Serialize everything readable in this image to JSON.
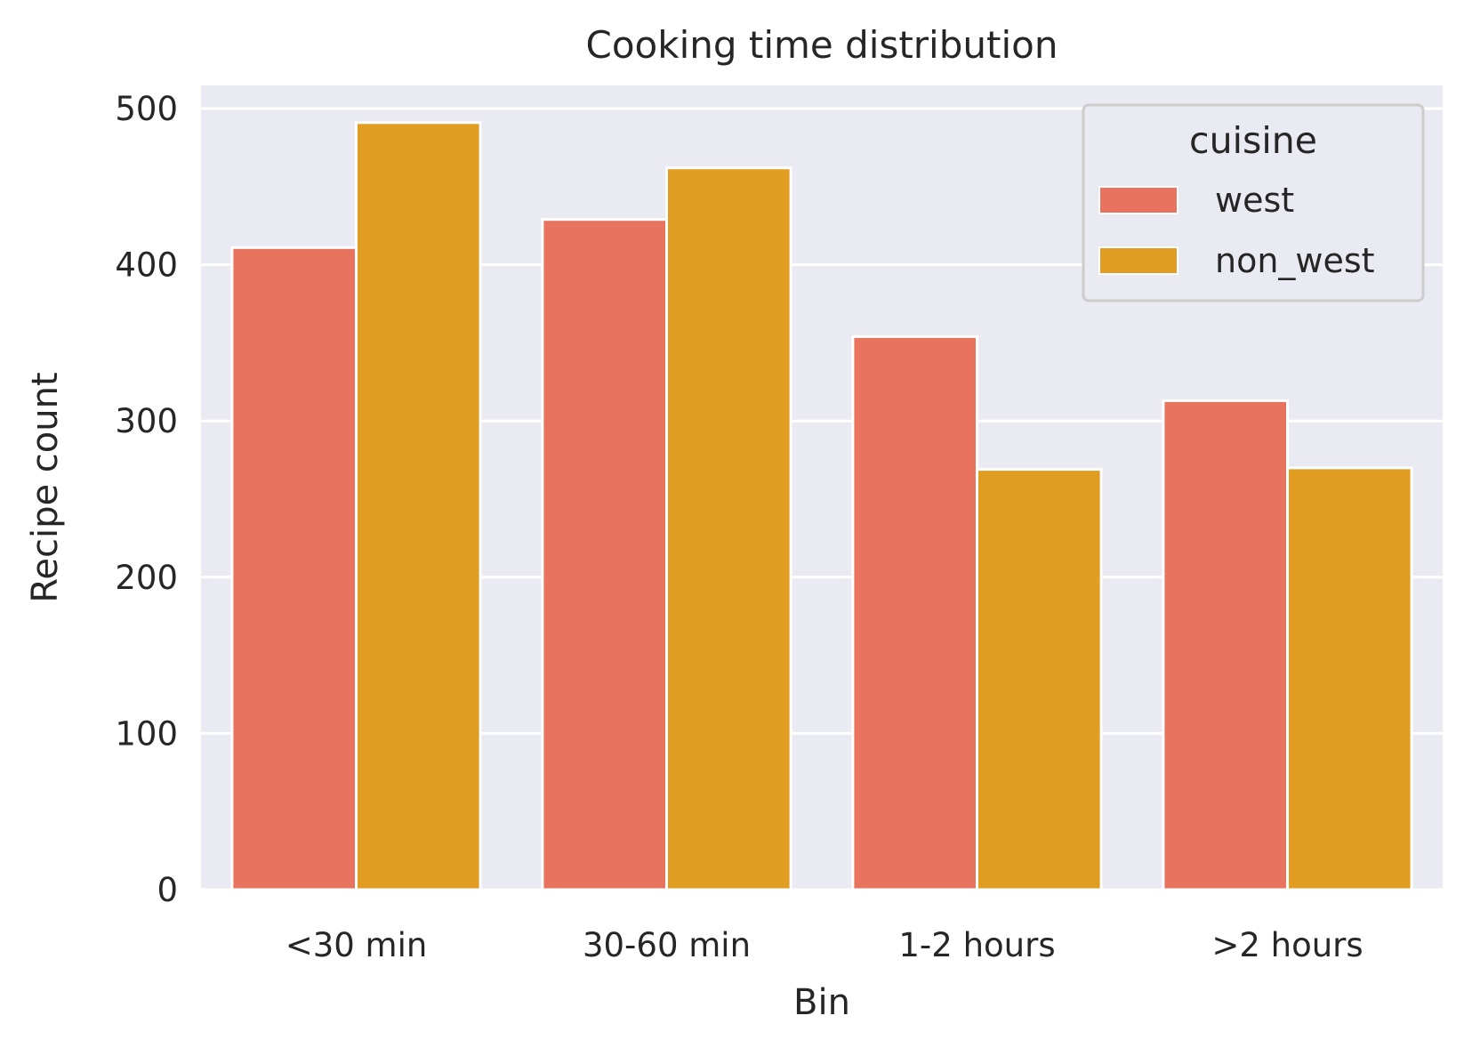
{
  "chart_data": {
    "type": "bar",
    "title": "Cooking time distribution",
    "xlabel": "Bin",
    "ylabel": "Recipe count",
    "categories": [
      "<30 min",
      "30-60 min",
      "1-2 hours",
      ">2 hours"
    ],
    "series": [
      {
        "name": "west",
        "color": "#e8735f",
        "values": [
          411,
          429,
          354,
          313
        ]
      },
      {
        "name": "non_west",
        "color": "#e09d21",
        "values": [
          491,
          462,
          269,
          270
        ]
      }
    ],
    "ylim": [
      0,
      515
    ],
    "yticks": [
      0,
      100,
      200,
      300,
      400,
      500
    ],
    "yticks_labels": [
      "0",
      "100",
      "200",
      "300",
      "400",
      "500"
    ],
    "grid": true,
    "background_color": "#eaeaf2",
    "legend": {
      "title": "cuisine",
      "placement": "top-right"
    }
  }
}
